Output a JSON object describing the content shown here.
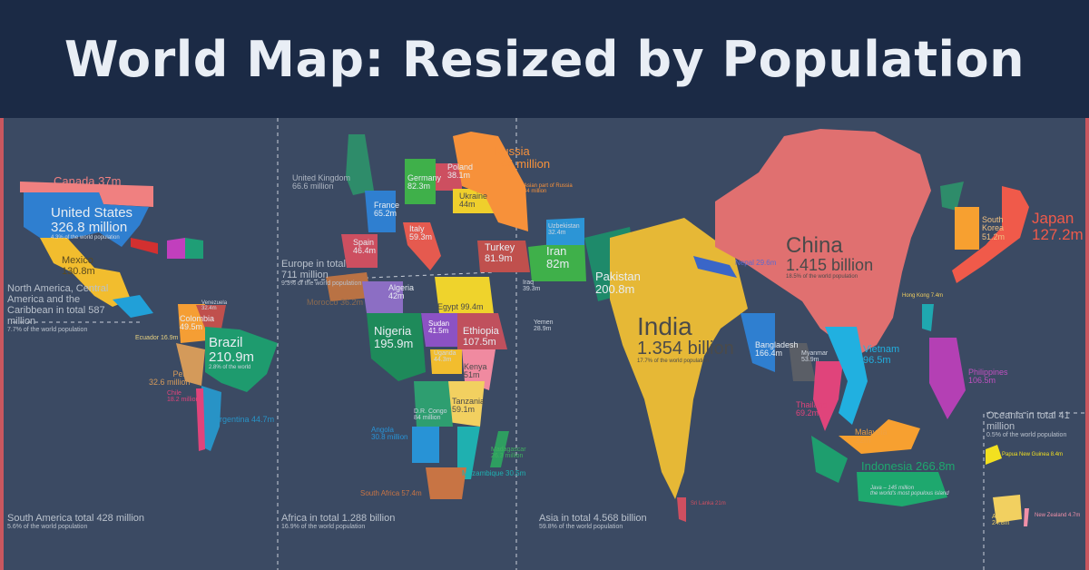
{
  "title": {
    "bold": "World Map:",
    "rest": " Resized by Population"
  },
  "colors": {
    "header": "#1b2a45",
    "background": "#3b4a63",
    "border": "#c9575f"
  },
  "regions": [
    {
      "title": "North America, Central America and the Caribbean in total 587 million",
      "sub": "7.7% of the world population"
    },
    {
      "title": "Europe in total 711 million",
      "sub": "9.3% of the world population"
    },
    {
      "title": "South America total 428 million",
      "sub": "5.6% of the world population"
    },
    {
      "title": "Africa in total 1.288 billion",
      "sub": "16.9% of the world population"
    },
    {
      "title": "Asia in total 4.568 billion",
      "sub": "59.8% of the world population"
    },
    {
      "title": "Oceania in total 41 million",
      "sub": "0.5% of the world population"
    }
  ],
  "countries": [
    {
      "name": "United States",
      "value": "326.8 million",
      "note": "4.3% of the world population"
    },
    {
      "name": "Canada",
      "value": "37m"
    },
    {
      "name": "Mexico",
      "value": "130.8m"
    },
    {
      "name": "Brazil",
      "value": "210.9m",
      "note": "2.8% of the world"
    },
    {
      "name": "Colombia",
      "value": "49.5m"
    },
    {
      "name": "Venezuela",
      "value": "32.4m"
    },
    {
      "name": "Peru",
      "value": "32.6 million"
    },
    {
      "name": "Argentina",
      "value": "44.7m"
    },
    {
      "name": "Chile",
      "value": "18.2 million"
    },
    {
      "name": "Ecuador",
      "value": "16.9m"
    },
    {
      "name": "United Kingdom",
      "value": "66.6 million"
    },
    {
      "name": "France",
      "value": "65.2m"
    },
    {
      "name": "Spain",
      "value": "46.4m"
    },
    {
      "name": "Germany",
      "value": "82.3m"
    },
    {
      "name": "Poland",
      "value": "38.1m"
    },
    {
      "name": "Ukraine",
      "value": "44m"
    },
    {
      "name": "Italy",
      "value": "59.3m"
    },
    {
      "name": "Russia",
      "value": "144 million"
    },
    {
      "name": "Asian part of Russia",
      "value": "34 million"
    },
    {
      "name": "Turkey",
      "value": "81.9m"
    },
    {
      "name": "Iran",
      "value": "82m"
    },
    {
      "name": "Uzbekistan",
      "value": "32.4m"
    },
    {
      "name": "Pakistan",
      "value": "200.8m"
    },
    {
      "name": "Morocco",
      "value": "36.2m"
    },
    {
      "name": "Algeria",
      "value": "42m"
    },
    {
      "name": "Egypt",
      "value": "99.4m"
    },
    {
      "name": "Sudan",
      "value": "41.5m"
    },
    {
      "name": "Nigeria",
      "value": "195.9m"
    },
    {
      "name": "Ethiopia",
      "value": "107.5m"
    },
    {
      "name": "Kenya",
      "value": "51m"
    },
    {
      "name": "Uganda",
      "value": "44.3m"
    },
    {
      "name": "Tanzania",
      "value": "59.1m"
    },
    {
      "name": "D.R. Congo",
      "value": "84 million"
    },
    {
      "name": "Angola",
      "value": "30.8 million"
    },
    {
      "name": "Madagascar",
      "value": "26.3 million"
    },
    {
      "name": "Mozambique",
      "value": "30.5m"
    },
    {
      "name": "South Africa",
      "value": "57.4m"
    },
    {
      "name": "India",
      "value": "1.354 billion",
      "note": "17.7% of the world population"
    },
    {
      "name": "China",
      "value": "1.415 billion",
      "note": "18.5% of the world population"
    },
    {
      "name": "Japan",
      "value": "127.2m"
    },
    {
      "name": "South Korea",
      "value": "51.2m"
    },
    {
      "name": "Bangladesh",
      "value": "166.4m"
    },
    {
      "name": "Myanmar",
      "value": "53.9m"
    },
    {
      "name": "Vietnam",
      "value": "96.5m"
    },
    {
      "name": "Thailand",
      "value": "69.2m"
    },
    {
      "name": "Philippines",
      "value": "106.5m"
    },
    {
      "name": "Malaysia",
      "value": "32m"
    },
    {
      "name": "Indonesia",
      "value": "266.8m"
    },
    {
      "name": "Nepal",
      "value": "29.6m"
    },
    {
      "name": "Yemen",
      "value": "28.9m"
    },
    {
      "name": "Iraq",
      "value": "39.3m"
    },
    {
      "name": "Australia",
      "value": "24.8m"
    },
    {
      "name": "Sri Lanka",
      "value": "21m"
    },
    {
      "name": "Hong Kong",
      "value": "7.4m"
    },
    {
      "name": "Java",
      "value": "145 million",
      "note": "the world's most populous island"
    },
    {
      "name": "Papua New Guinea",
      "value": "8.4m"
    },
    {
      "name": "New Zealand",
      "value": "4.7m"
    }
  ]
}
